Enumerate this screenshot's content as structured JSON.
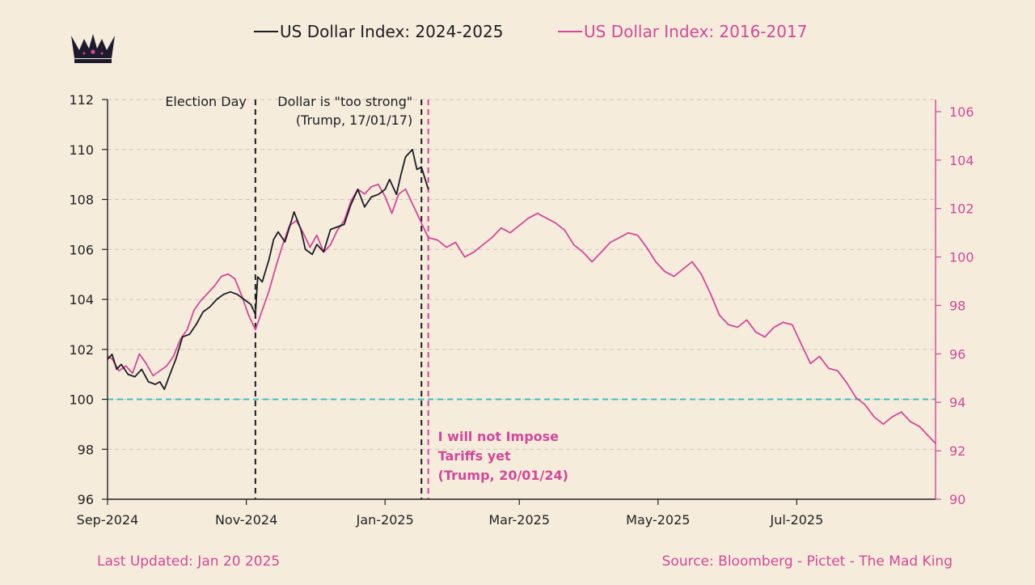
{
  "legend": {
    "series_a": "US Dollar Index: 2024-2025",
    "series_b": "US Dollar Index: 2016-2017"
  },
  "logo": {
    "icon": "crown-icon"
  },
  "footer": {
    "updated": "Last Updated: Jan 20 2025",
    "source": "Source: Bloomberg - Pictet - The Mad King"
  },
  "colors": {
    "background": "#f6ecdb",
    "series_a": "#1c1c24",
    "series_b": "#d2489c",
    "reference_line": "#3bbfc8",
    "grid": "#cfc6b6"
  },
  "chart_data": {
    "type": "line",
    "x_axis": {
      "start": "2024-09-01",
      "end": "2025-08-31",
      "ticks": [
        {
          "label": "Sep-2024",
          "date": "2024-09-01"
        },
        {
          "label": "Nov-2024",
          "date": "2024-11-01"
        },
        {
          "label": "Jan-2025",
          "date": "2025-01-01"
        },
        {
          "label": "Mar-2025",
          "date": "2025-03-01"
        },
        {
          "label": "May-2025",
          "date": "2025-05-01"
        },
        {
          "label": "Jul-2025",
          "date": "2025-07-01"
        }
      ]
    },
    "y_left": {
      "range": [
        96,
        112
      ],
      "ticks": [
        96,
        98,
        100,
        102,
        104,
        106,
        108,
        110,
        112
      ]
    },
    "y_right": {
      "range": [
        90,
        106.5
      ],
      "ticks": [
        90,
        92,
        94,
        96,
        98,
        100,
        102,
        104,
        106
      ]
    },
    "grid": true,
    "legend_position": "top",
    "reference_lines": [
      {
        "axis": "left",
        "value": 100,
        "style": "dashed",
        "color": "#3bbfc8"
      }
    ],
    "vertical_markers": [
      {
        "date": "2024-11-05",
        "label": "Election Day",
        "color": "#1c1c24",
        "label_align": "right"
      },
      {
        "date": "2025-01-17",
        "label": "Dollar is \"too strong\"\n(Trump, 17/01/17)",
        "color": "#1c1c24",
        "label_align": "right"
      },
      {
        "date": "2025-01-20",
        "label": "I will not Impose\nTariffs yet\n(Trump, 20/01/24)",
        "color": "#d2489c",
        "label_align": "left"
      }
    ],
    "series": [
      {
        "name": "US Dollar Index: 2024-2025",
        "axis": "left",
        "color": "#1c1c24",
        "x": [
          "2024-09-01",
          "2024-09-03",
          "2024-09-05",
          "2024-09-07",
          "2024-09-10",
          "2024-09-13",
          "2024-09-16",
          "2024-09-19",
          "2024-09-22",
          "2024-09-24",
          "2024-09-26",
          "2024-09-28",
          "2024-10-01",
          "2024-10-04",
          "2024-10-07",
          "2024-10-10",
          "2024-10-13",
          "2024-10-16",
          "2024-10-19",
          "2024-10-22",
          "2024-10-25",
          "2024-10-28",
          "2024-10-31",
          "2024-11-03",
          "2024-11-05",
          "2024-11-06",
          "2024-11-08",
          "2024-11-11",
          "2024-11-13",
          "2024-11-15",
          "2024-11-18",
          "2024-11-20",
          "2024-11-22",
          "2024-11-25",
          "2024-11-27",
          "2024-11-30",
          "2024-12-02",
          "2024-12-05",
          "2024-12-08",
          "2024-12-11",
          "2024-12-14",
          "2024-12-17",
          "2024-12-20",
          "2024-12-23",
          "2024-12-26",
          "2024-12-29",
          "2025-01-01",
          "2025-01-03",
          "2025-01-06",
          "2025-01-08",
          "2025-01-10",
          "2025-01-13",
          "2025-01-15",
          "2025-01-17",
          "2025-01-20"
        ],
        "y": [
          101.6,
          101.8,
          101.2,
          101.4,
          101.0,
          100.9,
          101.2,
          100.7,
          100.6,
          100.7,
          100.4,
          100.9,
          101.6,
          102.5,
          102.6,
          103.0,
          103.5,
          103.7,
          104.0,
          104.2,
          104.3,
          104.2,
          104.0,
          103.8,
          103.4,
          104.9,
          104.7,
          105.6,
          106.4,
          106.7,
          106.3,
          106.9,
          107.5,
          106.8,
          106.0,
          105.8,
          106.2,
          105.9,
          106.8,
          106.9,
          107.0,
          107.8,
          108.4,
          107.7,
          108.1,
          108.2,
          108.4,
          108.8,
          108.2,
          109.0,
          109.7,
          110.0,
          109.2,
          109.3,
          108.4
        ]
      },
      {
        "name": "US Dollar Index: 2016-2017",
        "axis": "right",
        "color": "#d2489c",
        "x": [
          "2024-09-01",
          "2024-09-03",
          "2024-09-06",
          "2024-09-09",
          "2024-09-12",
          "2024-09-15",
          "2024-09-18",
          "2024-09-21",
          "2024-09-24",
          "2024-09-27",
          "2024-09-30",
          "2024-10-03",
          "2024-10-06",
          "2024-10-09",
          "2024-10-12",
          "2024-10-15",
          "2024-10-18",
          "2024-10-21",
          "2024-10-24",
          "2024-10-27",
          "2024-10-30",
          "2024-11-02",
          "2024-11-05",
          "2024-11-08",
          "2024-11-11",
          "2024-11-14",
          "2024-11-17",
          "2024-11-20",
          "2024-11-23",
          "2024-11-26",
          "2024-11-29",
          "2024-12-02",
          "2024-12-05",
          "2024-12-08",
          "2024-12-11",
          "2024-12-14",
          "2024-12-17",
          "2024-12-20",
          "2024-12-23",
          "2024-12-26",
          "2024-12-29",
          "2025-01-01",
          "2025-01-04",
          "2025-01-07",
          "2025-01-10",
          "2025-01-13",
          "2025-01-16",
          "2025-01-20",
          "2025-01-24",
          "2025-01-28",
          "2025-02-01",
          "2025-02-05",
          "2025-02-09",
          "2025-02-13",
          "2025-02-17",
          "2025-02-21",
          "2025-02-25",
          "2025-03-01",
          "2025-03-05",
          "2025-03-09",
          "2025-03-13",
          "2025-03-17",
          "2025-03-21",
          "2025-03-25",
          "2025-03-29",
          "2025-04-02",
          "2025-04-06",
          "2025-04-10",
          "2025-04-14",
          "2025-04-18",
          "2025-04-22",
          "2025-04-26",
          "2025-04-30",
          "2025-05-04",
          "2025-05-08",
          "2025-05-12",
          "2025-05-16",
          "2025-05-20",
          "2025-05-24",
          "2025-05-28",
          "2025-06-01",
          "2025-06-05",
          "2025-06-09",
          "2025-06-13",
          "2025-06-17",
          "2025-06-21",
          "2025-06-25",
          "2025-06-29",
          "2025-07-03",
          "2025-07-07",
          "2025-07-11",
          "2025-07-15",
          "2025-07-19",
          "2025-07-23",
          "2025-07-27",
          "2025-07-31",
          "2025-08-04",
          "2025-08-08",
          "2025-08-12",
          "2025-08-16",
          "2025-08-20",
          "2025-08-24",
          "2025-08-28",
          "2025-08-31"
        ],
        "y": [
          95.9,
          95.8,
          95.3,
          95.5,
          95.2,
          96.0,
          95.6,
          95.1,
          95.3,
          95.5,
          95.9,
          96.6,
          97.0,
          97.8,
          98.2,
          98.5,
          98.8,
          99.2,
          99.3,
          99.1,
          98.4,
          97.6,
          97.0,
          97.8,
          98.6,
          99.6,
          100.5,
          101.3,
          101.5,
          101.0,
          100.4,
          100.9,
          100.2,
          100.5,
          101.1,
          101.5,
          102.3,
          102.8,
          102.6,
          102.9,
          103.0,
          102.5,
          101.8,
          102.6,
          102.8,
          102.2,
          101.6,
          100.8,
          100.7,
          100.4,
          100.6,
          100.0,
          100.2,
          100.5,
          100.8,
          101.2,
          101.0,
          101.3,
          101.6,
          101.8,
          101.6,
          101.4,
          101.1,
          100.5,
          100.2,
          99.8,
          100.2,
          100.6,
          100.8,
          101.0,
          100.9,
          100.4,
          99.8,
          99.4,
          99.2,
          99.5,
          99.8,
          99.3,
          98.5,
          97.6,
          97.2,
          97.1,
          97.4,
          96.9,
          96.7,
          97.1,
          97.3,
          97.2,
          96.4,
          95.6,
          95.9,
          95.4,
          95.3,
          94.8,
          94.2,
          93.9,
          93.4,
          93.1,
          93.4,
          93.6,
          93.2,
          93.0,
          92.6,
          92.3
        ]
      }
    ]
  }
}
